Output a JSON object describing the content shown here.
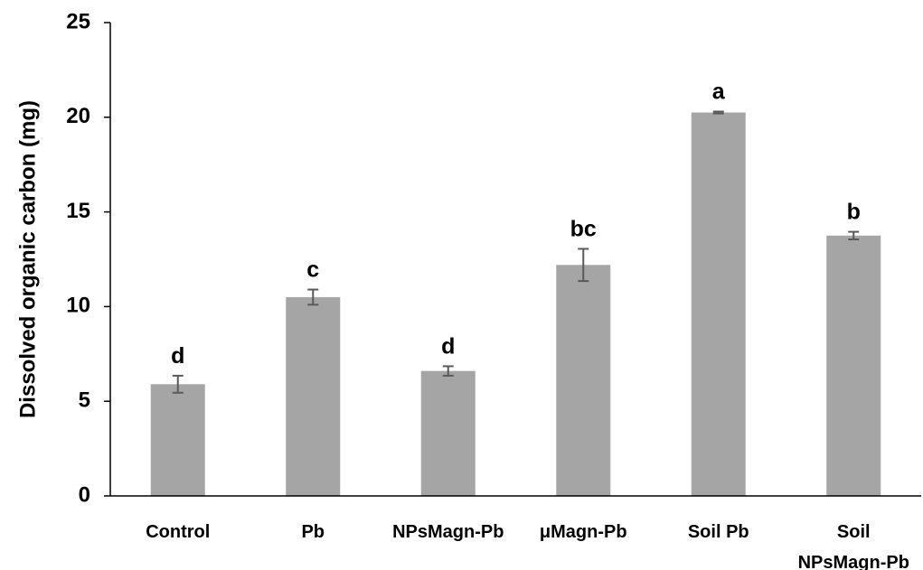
{
  "chart_data": {
    "type": "bar",
    "title": "",
    "xlabel": "",
    "ylabel": "Dissolved organic carbon (mg)",
    "ylim": [
      0,
      25
    ],
    "yticks": [
      0,
      5,
      10,
      15,
      20,
      25
    ],
    "grid": false,
    "categories": [
      [
        "Control"
      ],
      [
        "Pb"
      ],
      [
        "NPsMagn-Pb"
      ],
      [
        "μMagn-Pb"
      ],
      [
        "Soil Pb"
      ],
      [
        "Soil",
        "NPsMagn-Pb"
      ]
    ],
    "values": [
      5.9,
      10.5,
      6.6,
      12.2,
      20.25,
      13.75
    ],
    "errors": [
      0.45,
      0.4,
      0.25,
      0.85,
      0.05,
      0.2
    ],
    "significance_letters": [
      "d",
      "c",
      "d",
      "bc",
      "a",
      "b"
    ],
    "bar_color": "#a5a5a5",
    "error_bar_color": "#595959",
    "axis_color": "#000000"
  }
}
